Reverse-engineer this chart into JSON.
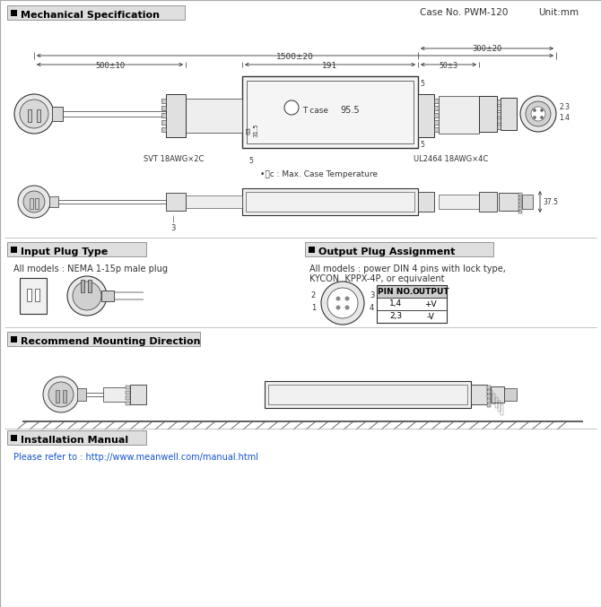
{
  "title_mech": "Mechanical Specification",
  "case_no": "Case No. PWM-120",
  "unit": "Unit:mm",
  "title_input": "Input Plug Type",
  "title_output": "Output Plug Assignment",
  "title_mount": "Recommend Mounting Direction",
  "title_install": "Installation Manual",
  "install_url": "Please refer to : http://www.meanwell.com/manual.html",
  "input_text1": "All models : NEMA 1-15p male plug",
  "output_text1": "All models : power DIN 4 pins with lock type,",
  "output_text2": "KYCON  KPPX-4P, or equivalent",
  "pin_headers": [
    "PIN NO.",
    "OUTPUT"
  ],
  "pin_rows": [
    [
      "1,4",
      "+V"
    ],
    [
      "2,3",
      "-V"
    ]
  ],
  "dim_1500": "1500±20",
  "dim_191": "191",
  "dim_300": "300±20",
  "dim_500": "500±10",
  "dim_50": "50±3",
  "dim_5": "5",
  "dim_37": "37.5",
  "dim_95": "95.5",
  "dim_3": "3",
  "tcase": "T case",
  "tc_note": "•Ⓣc : Max. Case Temperature",
  "svt_label": "SVT 18AWG×2C",
  "ul_label": "UL2464 18AWG×4C",
  "bg_color": "#ffffff",
  "line_color": "#333333",
  "section_bg": "#e0e0e0"
}
